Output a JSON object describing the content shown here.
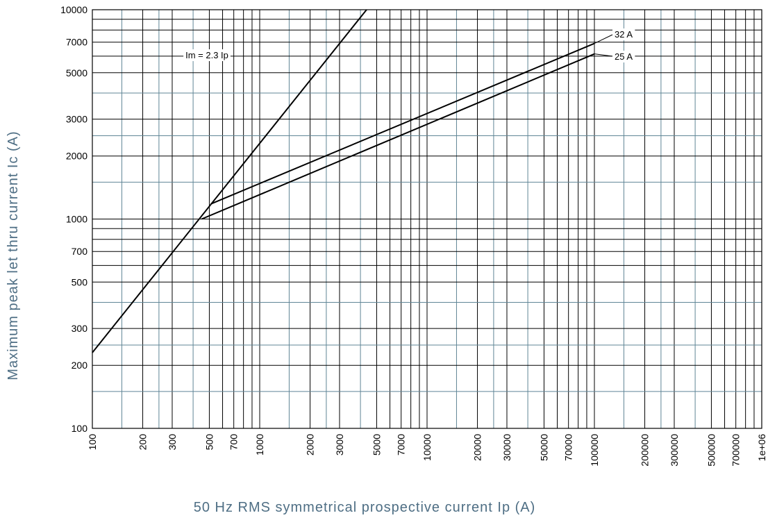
{
  "chart_data": {
    "type": "line",
    "title": "",
    "xlabel": "50 Hz RMS symmetrical prospective current Ip (A)",
    "ylabel": "Maximum peak let thru current Ic (A)",
    "xscale": "log",
    "yscale": "log",
    "xlim": [
      100,
      1000000
    ],
    "ylim": [
      100,
      10000
    ],
    "grid": true,
    "x_tick_labels": [
      {
        "v": 100,
        "label": "100"
      },
      {
        "v": 200,
        "label": "200"
      },
      {
        "v": 300,
        "label": "300"
      },
      {
        "v": 500,
        "label": "500"
      },
      {
        "v": 700,
        "label": "700"
      },
      {
        "v": 1000,
        "label": "1000"
      },
      {
        "v": 2000,
        "label": "2000"
      },
      {
        "v": 3000,
        "label": "3000"
      },
      {
        "v": 5000,
        "label": "5000"
      },
      {
        "v": 7000,
        "label": "7000"
      },
      {
        "v": 10000,
        "label": "10000"
      },
      {
        "v": 20000,
        "label": "20000"
      },
      {
        "v": 30000,
        "label": "30000"
      },
      {
        "v": 50000,
        "label": "50000"
      },
      {
        "v": 70000,
        "label": "70000"
      },
      {
        "v": 100000,
        "label": "100000"
      },
      {
        "v": 200000,
        "label": "200000"
      },
      {
        "v": 300000,
        "label": "300000"
      },
      {
        "v": 500000,
        "label": "500000"
      },
      {
        "v": 700000,
        "label": "700000"
      },
      {
        "v": 1000000,
        "label": "1e+06"
      }
    ],
    "y_tick_labels": [
      {
        "v": 100,
        "label": "100"
      },
      {
        "v": 200,
        "label": "200"
      },
      {
        "v": 300,
        "label": "300"
      },
      {
        "v": 500,
        "label": "500"
      },
      {
        "v": 700,
        "label": "700"
      },
      {
        "v": 1000,
        "label": "1000"
      },
      {
        "v": 2000,
        "label": "2000"
      },
      {
        "v": 3000,
        "label": "3000"
      },
      {
        "v": 5000,
        "label": "5000"
      },
      {
        "v": 7000,
        "label": "7000"
      },
      {
        "v": 10000,
        "label": "10000"
      }
    ],
    "series": [
      {
        "name": "Im = 2.3 Ip",
        "x": [
          100,
          4350
        ],
        "y": [
          230,
          10000
        ]
      },
      {
        "name": "32 A",
        "x": [
          510,
          100000
        ],
        "y": [
          1180,
          6900
        ]
      },
      {
        "name": "25 A",
        "x": [
          450,
          100000
        ],
        "y": [
          1000,
          6150
        ]
      }
    ],
    "colors": {
      "grid_major": "#000000",
      "grid_minor": "#5f8596",
      "line": "#000000",
      "axis_title": "#4e6e84"
    }
  }
}
